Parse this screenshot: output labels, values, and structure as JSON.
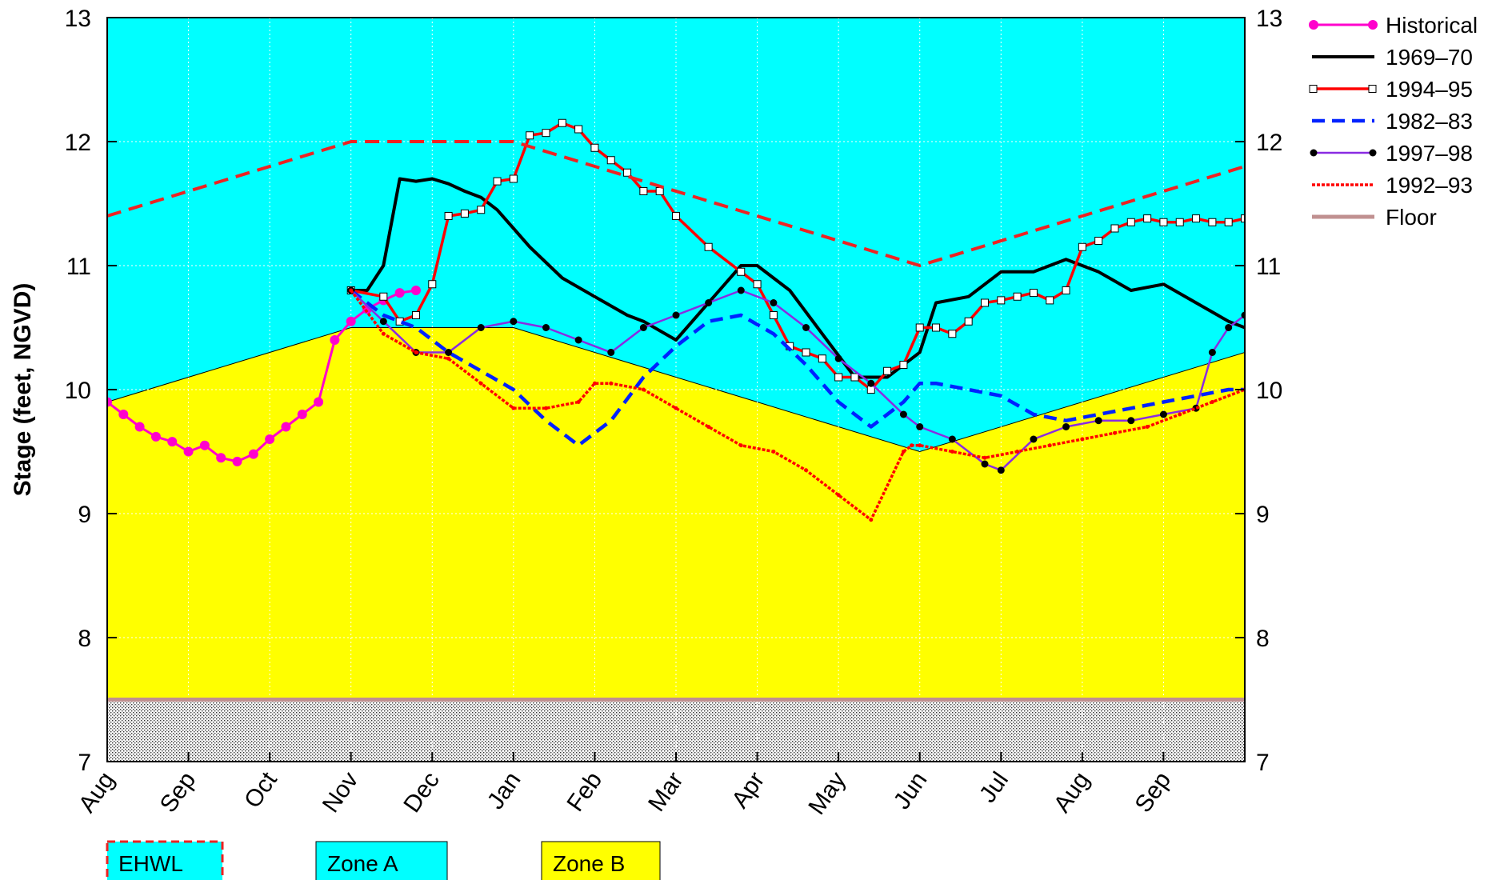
{
  "chart_data": {
    "type": "line",
    "title": "",
    "ylabel": "Stage (feet, NGVD)",
    "ylim": [
      7,
      13
    ],
    "yticks": [
      "7",
      "8",
      "9",
      "10",
      "11",
      "12",
      "13"
    ],
    "ytick_values": [
      7,
      8,
      9,
      10,
      11,
      12,
      13
    ],
    "xlim": [
      0,
      14
    ],
    "xticks": [
      "Aug",
      "Sep",
      "Oct",
      "Nov",
      "Dec",
      "Jan",
      "Feb",
      "Mar",
      "Apr",
      "May",
      "Jun",
      "Jul",
      "Aug",
      "Sep"
    ],
    "grid": true,
    "legend_placement": "right",
    "regions": {
      "zone_a_color": "#00ffff",
      "zone_b_color": "#ffff00",
      "zone_b_top": {
        "x": [
          0,
          3,
          5,
          10,
          14
        ],
        "y": [
          9.9,
          10.5,
          10.5,
          9.5,
          10.3
        ]
      },
      "floor_level": 7.5
    },
    "series": [
      {
        "name": "Historical",
        "color": "#ff00cc",
        "style": "solid",
        "marker": "dot-large",
        "x": [
          0,
          0.2,
          0.4,
          0.6,
          0.8,
          1.0,
          1.2,
          1.4,
          1.6,
          1.8,
          2.0,
          2.2,
          2.4,
          2.6,
          2.8,
          3.0,
          3.2,
          3.4,
          3.6,
          3.8
        ],
        "y": [
          9.9,
          9.8,
          9.7,
          9.62,
          9.58,
          9.5,
          9.55,
          9.45,
          9.42,
          9.48,
          9.6,
          9.7,
          9.8,
          9.9,
          10.4,
          10.55,
          10.65,
          10.72,
          10.78,
          10.8
        ]
      },
      {
        "name": "1969–70",
        "color": "#000000",
        "style": "solid",
        "marker": "none",
        "x": [
          3.0,
          3.2,
          3.4,
          3.6,
          3.8,
          4.0,
          4.2,
          4.4,
          4.6,
          4.8,
          5.0,
          5.2,
          5.6,
          6.0,
          6.4,
          6.6,
          7.0,
          7.4,
          7.6,
          7.8,
          8.0,
          8.4,
          8.8,
          9.2,
          9.6,
          10.0,
          10.2,
          10.6,
          11.0,
          11.4,
          11.8,
          12.2,
          12.6,
          13.0,
          13.4,
          13.8,
          14.0
        ],
        "y": [
          10.8,
          10.8,
          11.0,
          11.7,
          11.68,
          11.7,
          11.66,
          11.6,
          11.55,
          11.45,
          11.3,
          11.15,
          10.9,
          10.75,
          10.6,
          10.55,
          10.4,
          10.7,
          10.85,
          11.0,
          11.0,
          10.8,
          10.45,
          10.1,
          10.1,
          10.3,
          10.7,
          10.75,
          10.95,
          10.95,
          11.05,
          10.95,
          10.8,
          10.85,
          10.7,
          10.55,
          10.5
        ]
      },
      {
        "name": "1994–95",
        "color": "#ff0000",
        "style": "solid",
        "marker": "open-square",
        "x": [
          3.0,
          3.4,
          3.6,
          3.8,
          4.0,
          4.2,
          4.4,
          4.6,
          4.8,
          5.0,
          5.2,
          5.4,
          5.6,
          5.8,
          6.0,
          6.2,
          6.4,
          6.6,
          6.8,
          7.0,
          7.4,
          7.8,
          8.0,
          8.2,
          8.4,
          8.6,
          8.8,
          9.0,
          9.2,
          9.4,
          9.6,
          9.8,
          10.0,
          10.2,
          10.4,
          10.6,
          10.8,
          11.0,
          11.2,
          11.4,
          11.6,
          11.8,
          12.0,
          12.2,
          12.4,
          12.6,
          12.8,
          13.0,
          13.2,
          13.4,
          13.6,
          13.8,
          14.0
        ],
        "y": [
          10.8,
          10.75,
          10.55,
          10.6,
          10.85,
          11.4,
          11.42,
          11.45,
          11.68,
          11.7,
          12.05,
          12.07,
          12.15,
          12.1,
          11.95,
          11.85,
          11.75,
          11.6,
          11.6,
          11.4,
          11.15,
          10.95,
          10.85,
          10.6,
          10.35,
          10.3,
          10.25,
          10.1,
          10.1,
          10.0,
          10.15,
          10.2,
          10.5,
          10.5,
          10.45,
          10.55,
          10.7,
          10.72,
          10.75,
          10.78,
          10.72,
          10.8,
          11.15,
          11.2,
          11.3,
          11.35,
          11.38,
          11.35,
          11.35,
          11.38,
          11.35,
          11.35,
          11.38
        ]
      },
      {
        "name": "1982–83",
        "color": "#0022ff",
        "style": "dashed",
        "marker": "none",
        "x": [
          3.0,
          3.4,
          3.8,
          4.2,
          4.6,
          5.0,
          5.4,
          5.8,
          6.2,
          6.6,
          7.0,
          7.4,
          7.8,
          8.2,
          8.6,
          9.0,
          9.4,
          9.8,
          10.0,
          10.2,
          10.6,
          11.0,
          11.4,
          11.8,
          12.2,
          12.6,
          13.0,
          13.4,
          13.8,
          14.0
        ],
        "y": [
          10.8,
          10.6,
          10.5,
          10.3,
          10.15,
          10.0,
          9.75,
          9.55,
          9.75,
          10.1,
          10.35,
          10.55,
          10.6,
          10.45,
          10.2,
          9.9,
          9.7,
          9.9,
          10.05,
          10.05,
          10.0,
          9.95,
          9.8,
          9.75,
          9.8,
          9.85,
          9.9,
          9.95,
          10.0,
          10.0
        ]
      },
      {
        "name": "1997–98",
        "color": "#8a2be2",
        "style": "solid",
        "marker": "filled-dot",
        "x": [
          3.0,
          3.4,
          3.8,
          4.2,
          4.6,
          5.0,
          5.4,
          5.8,
          6.2,
          6.6,
          7.0,
          7.4,
          7.8,
          8.2,
          8.6,
          9.0,
          9.4,
          9.8,
          10.0,
          10.4,
          10.8,
          11.0,
          11.4,
          11.8,
          12.2,
          12.6,
          13.0,
          13.4,
          13.6,
          13.8,
          14.0
        ],
        "y": [
          10.8,
          10.55,
          10.3,
          10.3,
          10.5,
          10.55,
          10.5,
          10.4,
          10.3,
          10.5,
          10.6,
          10.7,
          10.8,
          10.7,
          10.5,
          10.25,
          10.05,
          9.8,
          9.7,
          9.6,
          9.4,
          9.35,
          9.6,
          9.7,
          9.75,
          9.75,
          9.8,
          9.85,
          10.3,
          10.5,
          10.6
        ]
      },
      {
        "name": "1992–93",
        "color": "#ff0000",
        "style": "dotted",
        "marker": "small-dot",
        "x": [
          3.0,
          3.4,
          3.8,
          4.2,
          4.6,
          5.0,
          5.4,
          5.8,
          6.0,
          6.2,
          6.6,
          7.0,
          7.4,
          7.8,
          8.2,
          8.6,
          9.0,
          9.4,
          9.8,
          9.9,
          10.0,
          10.4,
          10.8,
          11.2,
          11.6,
          12.0,
          12.4,
          12.8,
          13.2,
          13.6,
          14.0
        ],
        "y": [
          10.8,
          10.45,
          10.3,
          10.25,
          10.05,
          9.85,
          9.85,
          9.9,
          10.05,
          10.05,
          10.0,
          9.85,
          9.7,
          9.55,
          9.5,
          9.35,
          9.15,
          8.95,
          9.5,
          9.55,
          9.55,
          9.5,
          9.45,
          9.5,
          9.55,
          9.6,
          9.65,
          9.7,
          9.8,
          9.9,
          10.0
        ]
      },
      {
        "name": "EHWL",
        "color": "#ee2222",
        "style": "long-dashed",
        "marker": "none",
        "x": [
          0,
          3,
          5,
          10,
          14
        ],
        "y": [
          11.4,
          12.0,
          12.0,
          11.0,
          11.8
        ]
      },
      {
        "name": "Floor",
        "color": "#c09090",
        "style": "solid",
        "marker": "none",
        "x": [
          0,
          14
        ],
        "y": [
          7.5,
          7.5
        ]
      }
    ],
    "legend": [
      "Historical",
      "1969–70",
      "1994–95",
      "1982–83",
      "1997–98",
      "1992–93",
      "Floor"
    ],
    "zone_labels": [
      "EHWL",
      "Zone A",
      "Zone B"
    ]
  }
}
